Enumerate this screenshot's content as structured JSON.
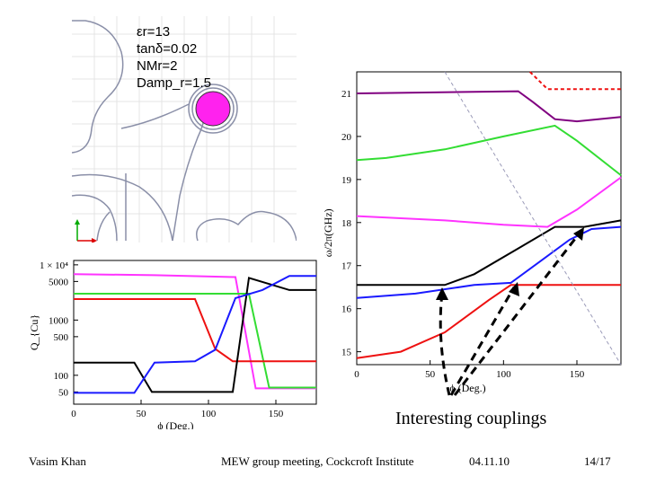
{
  "slide": {
    "params": [
      "εr=13",
      "tanδ=0.02",
      "NMr=2",
      "Damp_r=1.5"
    ],
    "caption": "Interesting couplings",
    "footer": {
      "author": "Vasim Khan",
      "venue": "MEW group meeting, Cockcroft Institute",
      "date": "04.11.10",
      "page": "14/17"
    }
  },
  "colors": {
    "magenta": "#ff33ff",
    "purple": "#800080",
    "green": "#33dd33",
    "black": "#000000",
    "blue": "#1a1aff",
    "red": "#ee1111"
  },
  "chart_data": [
    {
      "type": "line",
      "title": "",
      "xlabel": "ϕ (Deg.)",
      "ylabel": "Q_{Cu}",
      "yscale": "log",
      "xlim": [
        0,
        180
      ],
      "ylim": [
        30,
        12000
      ],
      "x_ticks": [
        "0",
        "50",
        "100",
        "150"
      ],
      "y_ticks": [
        {
          "v": 10000,
          "label": "1 × 10⁴"
        },
        {
          "v": 5000,
          "label": "5000"
        },
        {
          "v": 1000,
          "label": "1000"
        },
        {
          "v": 500,
          "label": "500"
        },
        {
          "v": 100,
          "label": "100"
        },
        {
          "v": 50,
          "label": "50"
        }
      ],
      "series": [
        {
          "name": "magenta",
          "color": "#ff33ff",
          "points": [
            [
              0,
              6800
            ],
            [
              60,
              6500
            ],
            [
              120,
              6000
            ],
            [
              135,
              58
            ],
            [
              180,
              58
            ]
          ]
        },
        {
          "name": "green",
          "color": "#33dd33",
          "points": [
            [
              0,
              3000
            ],
            [
              120,
              3000
            ],
            [
              130,
              3000
            ],
            [
              145,
              60
            ],
            [
              180,
              60
            ]
          ]
        },
        {
          "name": "red",
          "color": "#ee1111",
          "points": [
            [
              0,
              2400
            ],
            [
              90,
              2400
            ],
            [
              105,
              300
            ],
            [
              118,
              180
            ],
            [
              180,
              180
            ]
          ]
        },
        {
          "name": "black",
          "color": "#000000",
          "points": [
            [
              0,
              170
            ],
            [
              45,
              170
            ],
            [
              58,
              50
            ],
            [
              90,
              50
            ],
            [
              118,
              50
            ],
            [
              130,
              5800
            ],
            [
              160,
              3500
            ],
            [
              180,
              3500
            ]
          ]
        },
        {
          "name": "blue",
          "color": "#1a1aff",
          "points": [
            [
              0,
              48
            ],
            [
              45,
              48
            ],
            [
              60,
              170
            ],
            [
              90,
              180
            ],
            [
              105,
              290
            ],
            [
              120,
              2500
            ],
            [
              140,
              3500
            ],
            [
              160,
              6300
            ],
            [
              180,
              6300
            ]
          ]
        }
      ]
    },
    {
      "type": "line",
      "title": "",
      "xlabel": "ϕ (Deg.)",
      "ylabel": "ω/2π(GHz)",
      "xlim": [
        0,
        180
      ],
      "ylim": [
        14.7,
        21.5
      ],
      "x_ticks": [
        "0",
        "50",
        "100",
        "150"
      ],
      "y_ticks": [
        "15",
        "16",
        "17",
        "18",
        "19",
        "20",
        "21"
      ],
      "series": [
        {
          "name": "purple",
          "color": "#800080",
          "points": [
            [
              0,
              21.0
            ],
            [
              110,
              21.05
            ],
            [
              120,
              20.8
            ],
            [
              135,
              20.4
            ],
            [
              150,
              20.35
            ],
            [
              180,
              20.45
            ]
          ]
        },
        {
          "name": "red-dashed",
          "color": "#ee1111",
          "dashed": true,
          "points": [
            [
              118,
              21.5
            ],
            [
              130,
              21.1
            ],
            [
              180,
              21.1
            ]
          ]
        },
        {
          "name": "green",
          "color": "#33dd33",
          "points": [
            [
              0,
              19.45
            ],
            [
              20,
              19.5
            ],
            [
              60,
              19.7
            ],
            [
              100,
              20.0
            ],
            [
              135,
              20.25
            ],
            [
              150,
              19.9
            ],
            [
              180,
              19.1
            ]
          ]
        },
        {
          "name": "magenta",
          "color": "#ff33ff",
          "points": [
            [
              0,
              18.15
            ],
            [
              60,
              18.05
            ],
            [
              100,
              17.95
            ],
            [
              130,
              17.9
            ],
            [
              150,
              18.3
            ],
            [
              180,
              19.05
            ]
          ]
        },
        {
          "name": "black",
          "color": "#000000",
          "points": [
            [
              0,
              16.55
            ],
            [
              60,
              16.55
            ],
            [
              80,
              16.8
            ],
            [
              110,
              17.4
            ],
            [
              135,
              17.9
            ],
            [
              155,
              17.9
            ],
            [
              180,
              18.05
            ]
          ]
        },
        {
          "name": "blue",
          "color": "#1a1aff",
          "points": [
            [
              0,
              16.25
            ],
            [
              40,
              16.35
            ],
            [
              80,
              16.55
            ],
            [
              105,
              16.6
            ],
            [
              125,
              17.1
            ],
            [
              145,
              17.6
            ],
            [
              160,
              17.85
            ],
            [
              180,
              17.9
            ]
          ]
        },
        {
          "name": "red",
          "color": "#ee1111",
          "points": [
            [
              0,
              14.85
            ],
            [
              30,
              15.0
            ],
            [
              60,
              15.45
            ],
            [
              90,
              16.2
            ],
            [
              105,
              16.55
            ],
            [
              180,
              16.55
            ]
          ]
        },
        {
          "name": "light-line",
          "color": "#9a9ab8",
          "dashed": true,
          "points": [
            [
              60,
              21.5
            ],
            [
              180,
              14.7
            ]
          ]
        }
      ]
    }
  ]
}
